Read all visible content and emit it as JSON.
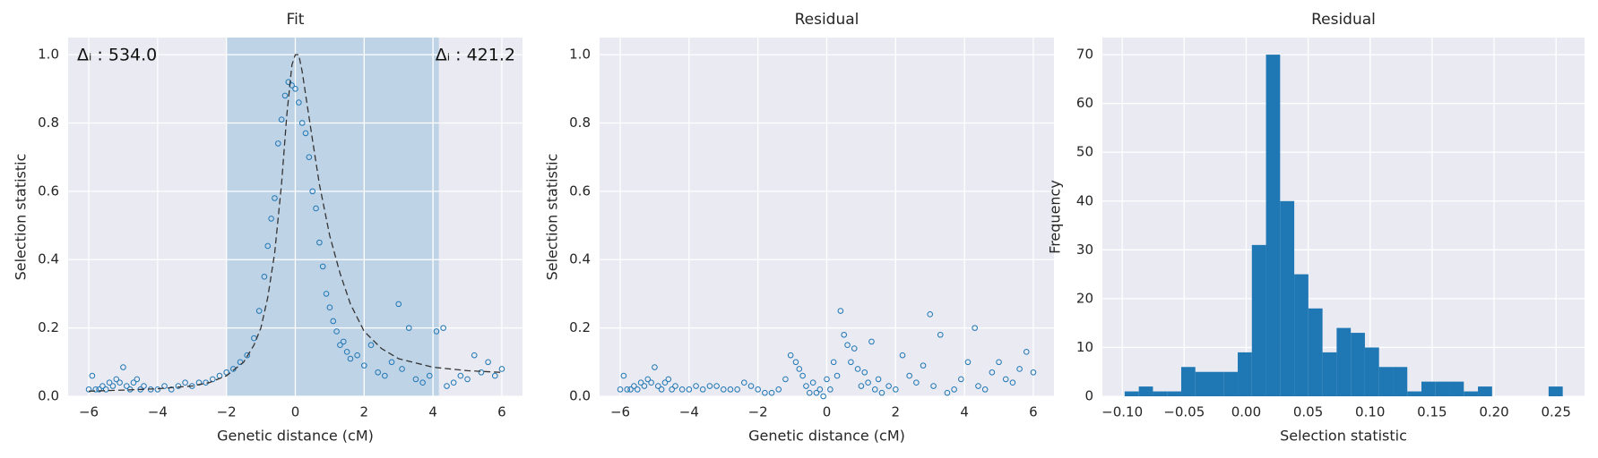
{
  "chart_data": [
    {
      "type": "scatter",
      "title": "Fit",
      "x_label": "Genetic distance (cM)",
      "y_label": "Selection statistic",
      "xlim": [
        -6.6,
        6.6
      ],
      "ylim": [
        0,
        1.05
      ],
      "xticks": [
        {
          "value": -6,
          "label": "−6"
        },
        {
          "value": -4,
          "label": "−4"
        },
        {
          "value": -2,
          "label": "−2"
        },
        0,
        2,
        4,
        6
      ],
      "yticks": [
        {
          "value": 0,
          "label": "0.0"
        },
        {
          "value": 0.2,
          "label": "0.2"
        },
        {
          "value": 0.4,
          "label": "0.4"
        },
        {
          "value": 0.6,
          "label": "0.6"
        },
        {
          "value": 0.8,
          "label": "0.8"
        },
        {
          "value": 1,
          "label": "1.0"
        }
      ],
      "grid": true,
      "color": "#1f77b4",
      "span": [
        -2,
        4.17
      ],
      "span_color": "#b4cde3",
      "annotations": [
        "Δᵢ : 534.0",
        "Δᵢ : 421.2"
      ],
      "x": [
        -6,
        -5.9,
        -5.8,
        -5.7,
        -5.6,
        -5.5,
        -5.4,
        -5.3,
        -5.2,
        -5.1,
        -5,
        -4.9,
        -4.8,
        -4.7,
        -4.6,
        -4.5,
        -4.4,
        -4.2,
        -4,
        -3.8,
        -3.6,
        -3.4,
        -3.2,
        -3,
        -2.8,
        -2.6,
        -2.4,
        -2.2,
        -2,
        -1.8,
        -1.6,
        -1.4,
        -1.2,
        -1.05,
        -0.9,
        -0.8,
        -0.7,
        -0.6,
        -0.5,
        -0.4,
        -0.3,
        -0.2,
        -0.1,
        0,
        0.1,
        0.2,
        0.3,
        0.4,
        0.5,
        0.6,
        0.7,
        0.8,
        0.9,
        1,
        1.1,
        1.2,
        1.3,
        1.4,
        1.5,
        1.6,
        1.8,
        2,
        2.2,
        2.4,
        2.6,
        2.8,
        3,
        3.1,
        3.3,
        3.5,
        3.7,
        3.9,
        4.1,
        4.3,
        4.4,
        4.6,
        4.8,
        5,
        5.2,
        5.4,
        5.6,
        5.8,
        6
      ],
      "values": [
        0.02,
        0.06,
        0.02,
        0.02,
        0.03,
        0.02,
        0.04,
        0.03,
        0.05,
        0.04,
        0.085,
        0.03,
        0.02,
        0.04,
        0.05,
        0.02,
        0.03,
        0.02,
        0.02,
        0.03,
        0.02,
        0.03,
        0.04,
        0.03,
        0.04,
        0.04,
        0.05,
        0.06,
        0.07,
        0.08,
        0.1,
        0.12,
        0.17,
        0.25,
        0.35,
        0.44,
        0.52,
        0.58,
        0.74,
        0.81,
        0.88,
        0.92,
        0.91,
        0.9,
        0.86,
        0.8,
        0.77,
        0.7,
        0.6,
        0.55,
        0.45,
        0.38,
        0.3,
        0.26,
        0.22,
        0.19,
        0.15,
        0.16,
        0.13,
        0.11,
        0.12,
        0.09,
        0.15,
        0.07,
        0.06,
        0.1,
        0.27,
        0.08,
        0.2,
        0.05,
        0.04,
        0.06,
        0.19,
        0.2,
        0.03,
        0.04,
        0.06,
        0.05,
        0.12,
        0.07,
        0.1,
        0.06,
        0.08
      ],
      "fit": {
        "color": "#333333",
        "x": [
          -6,
          -5,
          -4,
          -3,
          -2.5,
          -2,
          -1.5,
          -1.2,
          -1,
          -0.8,
          -0.6,
          -0.4,
          -0.25,
          -0.1,
          0,
          0.1,
          0.2,
          0.35,
          0.5,
          0.7,
          1,
          1.3,
          1.6,
          2,
          2.5,
          3,
          4,
          5,
          6
        ],
        "values": [
          0.015,
          0.018,
          0.022,
          0.03,
          0.04,
          0.06,
          0.1,
          0.15,
          0.2,
          0.29,
          0.42,
          0.62,
          0.82,
          0.97,
          1.0,
          1.0,
          0.95,
          0.85,
          0.75,
          0.62,
          0.47,
          0.36,
          0.27,
          0.19,
          0.14,
          0.11,
          0.085,
          0.075,
          0.07
        ]
      }
    },
    {
      "type": "scatter",
      "title": "Residual",
      "x_label": "Genetic distance (cM)",
      "y_label": "Selection statistic",
      "xlim": [
        -6.6,
        6.6
      ],
      "ylim": [
        0,
        1.05
      ],
      "xticks": [
        {
          "value": -6,
          "label": "−6"
        },
        {
          "value": -4,
          "label": "−4"
        },
        {
          "value": -2,
          "label": "−2"
        },
        0,
        2,
        4,
        6
      ],
      "yticks": [
        {
          "value": 0,
          "label": "0.0"
        },
        {
          "value": 0.2,
          "label": "0.2"
        },
        {
          "value": 0.4,
          "label": "0.4"
        },
        {
          "value": 0.6,
          "label": "0.6"
        },
        {
          "value": 0.8,
          "label": "0.8"
        },
        {
          "value": 1,
          "label": "1.0"
        }
      ],
      "grid": true,
      "color": "#1f77b4",
      "x": [
        -6,
        -5.9,
        -5.8,
        -5.7,
        -5.6,
        -5.5,
        -5.4,
        -5.3,
        -5.2,
        -5.1,
        -5,
        -4.9,
        -4.8,
        -4.7,
        -4.6,
        -4.5,
        -4.4,
        -4.2,
        -4,
        -3.8,
        -3.6,
        -3.4,
        -3.2,
        -3,
        -2.8,
        -2.6,
        -2.4,
        -2.2,
        -2,
        -1.8,
        -1.6,
        -1.4,
        -1.2,
        -1.05,
        -0.9,
        -0.8,
        -0.7,
        -0.6,
        -0.5,
        -0.4,
        -0.3,
        -0.2,
        -0.1,
        0,
        0.1,
        0.2,
        0.3,
        0.4,
        0.5,
        0.6,
        0.7,
        0.8,
        0.9,
        1,
        1.1,
        1.2,
        1.3,
        1.4,
        1.5,
        1.6,
        1.8,
        2,
        2.2,
        2.4,
        2.6,
        2.8,
        3,
        3.1,
        3.3,
        3.5,
        3.7,
        3.9,
        4.1,
        4.3,
        4.4,
        4.6,
        4.8,
        5,
        5.2,
        5.4,
        5.6,
        5.8,
        6
      ],
      "values": [
        0.02,
        0.06,
        0.02,
        0.02,
        0.03,
        0.02,
        0.04,
        0.03,
        0.05,
        0.04,
        0.085,
        0.03,
        0.02,
        0.04,
        0.05,
        0.02,
        0.03,
        0.02,
        0.02,
        0.03,
        0.02,
        0.03,
        0.03,
        0.02,
        0.02,
        0.02,
        0.04,
        0.03,
        0.02,
        0.01,
        0.01,
        0.02,
        0.05,
        0.12,
        0.1,
        0.08,
        0.06,
        0.03,
        0.01,
        0.04,
        0.01,
        0.02,
        0.0,
        0.05,
        0.02,
        0.1,
        0.06,
        0.25,
        0.18,
        0.15,
        0.1,
        0.14,
        0.08,
        0.03,
        0.07,
        0.04,
        0.16,
        0.02,
        0.05,
        0.01,
        0.03,
        0.02,
        0.12,
        0.06,
        0.04,
        0.09,
        0.24,
        0.03,
        0.18,
        0.01,
        0.02,
        0.05,
        0.1,
        0.2,
        0.03,
        0.02,
        0.07,
        0.1,
        0.05,
        0.04,
        0.08,
        0.13,
        0.07
      ]
    },
    {
      "type": "histogram",
      "title": "Residual",
      "x_label": "Selection statistic",
      "y_label": "Frequency",
      "xlim": [
        -0.116,
        0.273
      ],
      "ylim": [
        0,
        73.5
      ],
      "xticks": [
        {
          "value": -0.1,
          "label": "−0.10"
        },
        {
          "value": -0.05,
          "label": "−0.05"
        },
        {
          "value": 0,
          "label": "0.00"
        },
        {
          "value": 0.05,
          "label": "0.05"
        },
        {
          "value": 0.1,
          "label": "0.10"
        },
        {
          "value": 0.15,
          "label": "0.15"
        },
        {
          "value": 0.2,
          "label": "0.20"
        },
        {
          "value": 0.25,
          "label": "0.25"
        }
      ],
      "yticks": [
        0,
        10,
        20,
        30,
        40,
        50,
        60,
        70
      ],
      "grid": true,
      "color": "#1f77b4",
      "bins": [
        -0.098,
        -0.0866,
        -0.0752,
        -0.0638,
        -0.0524,
        -0.041,
        -0.0296,
        -0.0182,
        -0.0068,
        0.0046,
        0.016,
        0.0274,
        0.0388,
        0.0502,
        0.0616,
        0.073,
        0.0844,
        0.0958,
        0.1072,
        0.1186,
        0.13,
        0.1414,
        0.1528,
        0.1642,
        0.1756,
        0.187,
        0.1984,
        0.2098,
        0.2212,
        0.2326,
        0.244,
        0.2554
      ],
      "values": [
        1,
        2,
        1,
        1,
        6,
        5,
        5,
        5,
        9,
        31,
        70,
        40,
        25,
        18,
        9,
        14,
        13,
        10,
        6,
        6,
        1,
        3,
        3,
        3,
        1,
        2,
        0,
        0,
        0,
        0,
        2
      ]
    }
  ]
}
